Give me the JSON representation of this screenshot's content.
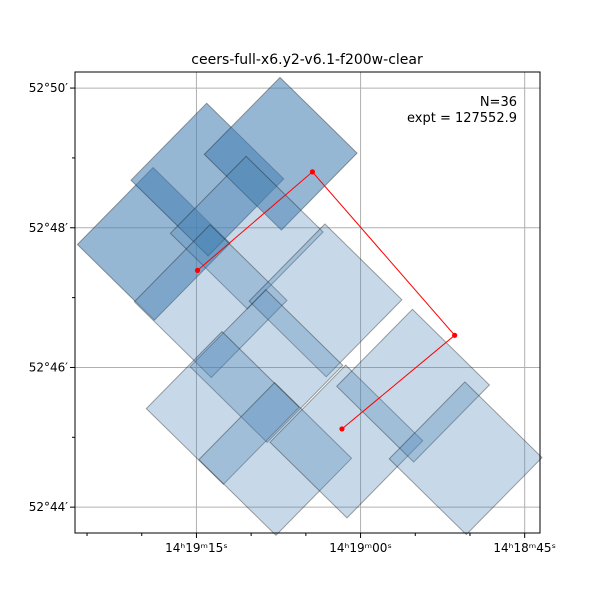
{
  "chart_data": {
    "type": "footprint",
    "title": "ceers-full-x6.y2-v6.1-f200w-clear",
    "annotation": [
      "N=36",
      "expt = 127552.9"
    ],
    "grid": true,
    "colors": {
      "footprint_fill": "#4682b4",
      "footprint_edge": "#000000",
      "path": "#ff0000",
      "grid": "#b0b0b0"
    },
    "x_ticks": [
      {
        "ra_sec": 15,
        "label": "14ʰ19ᵐ15ˢ"
      },
      {
        "ra_sec": 0,
        "label": "14ʰ19ᵐ00ˢ"
      },
      {
        "ra_sec": -15,
        "label": "14ʰ18ᵐ45ˢ"
      }
    ],
    "y_ticks": [
      {
        "dec_min": 50,
        "label": "52°50′"
      },
      {
        "dec_min": 48,
        "label": "52°48′"
      },
      {
        "dec_min": 46,
        "label": "52°46′"
      },
      {
        "dec_min": 44,
        "label": "52°44′"
      }
    ],
    "x_minor_ticks": [
      25,
      20,
      10,
      5,
      -5,
      -10
    ],
    "y_minor_ticks": [
      49,
      47,
      45
    ],
    "xlim_ra_sec": [
      26.1,
      -16.4
    ],
    "ylim_dec_min": [
      43.63,
      50.23
    ],
    "footprints": [
      {
        "center_ra_sec": 18.9,
        "center_dec_min": 47.77,
        "overlap": 2
      },
      {
        "center_ra_sec": 14.0,
        "center_dec_min": 48.69,
        "overlap": 2
      },
      {
        "center_ra_sec": 7.3,
        "center_dec_min": 49.06,
        "overlap": 2
      },
      {
        "center_ra_sec": 10.4,
        "center_dec_min": 47.93,
        "overlap": 1
      },
      {
        "center_ra_sec": 13.7,
        "center_dec_min": 46.95,
        "overlap": 1
      },
      {
        "center_ra_sec": 3.2,
        "center_dec_min": 46.96,
        "overlap": 1
      },
      {
        "center_ra_sec": 8.6,
        "center_dec_min": 46.02,
        "overlap": 1
      },
      {
        "center_ra_sec": 12.6,
        "center_dec_min": 45.42,
        "overlap": 1
      },
      {
        "center_ra_sec": 7.8,
        "center_dec_min": 44.69,
        "overlap": 1
      },
      {
        "center_ra_sec": 1.3,
        "center_dec_min": 44.94,
        "overlap": 1
      },
      {
        "center_ra_sec": -4.8,
        "center_dec_min": 45.74,
        "overlap": 1
      },
      {
        "center_ra_sec": -9.6,
        "center_dec_min": 44.7,
        "overlap": 1
      }
    ],
    "path_points": [
      {
        "ra_sec": 14.9,
        "dec_min": 47.39
      },
      {
        "ra_sec": 4.4,
        "dec_min": 48.8
      },
      {
        "ra_sec": -8.6,
        "dec_min": 46.46
      },
      {
        "ra_sec": 1.7,
        "dec_min": 45.12
      }
    ]
  }
}
